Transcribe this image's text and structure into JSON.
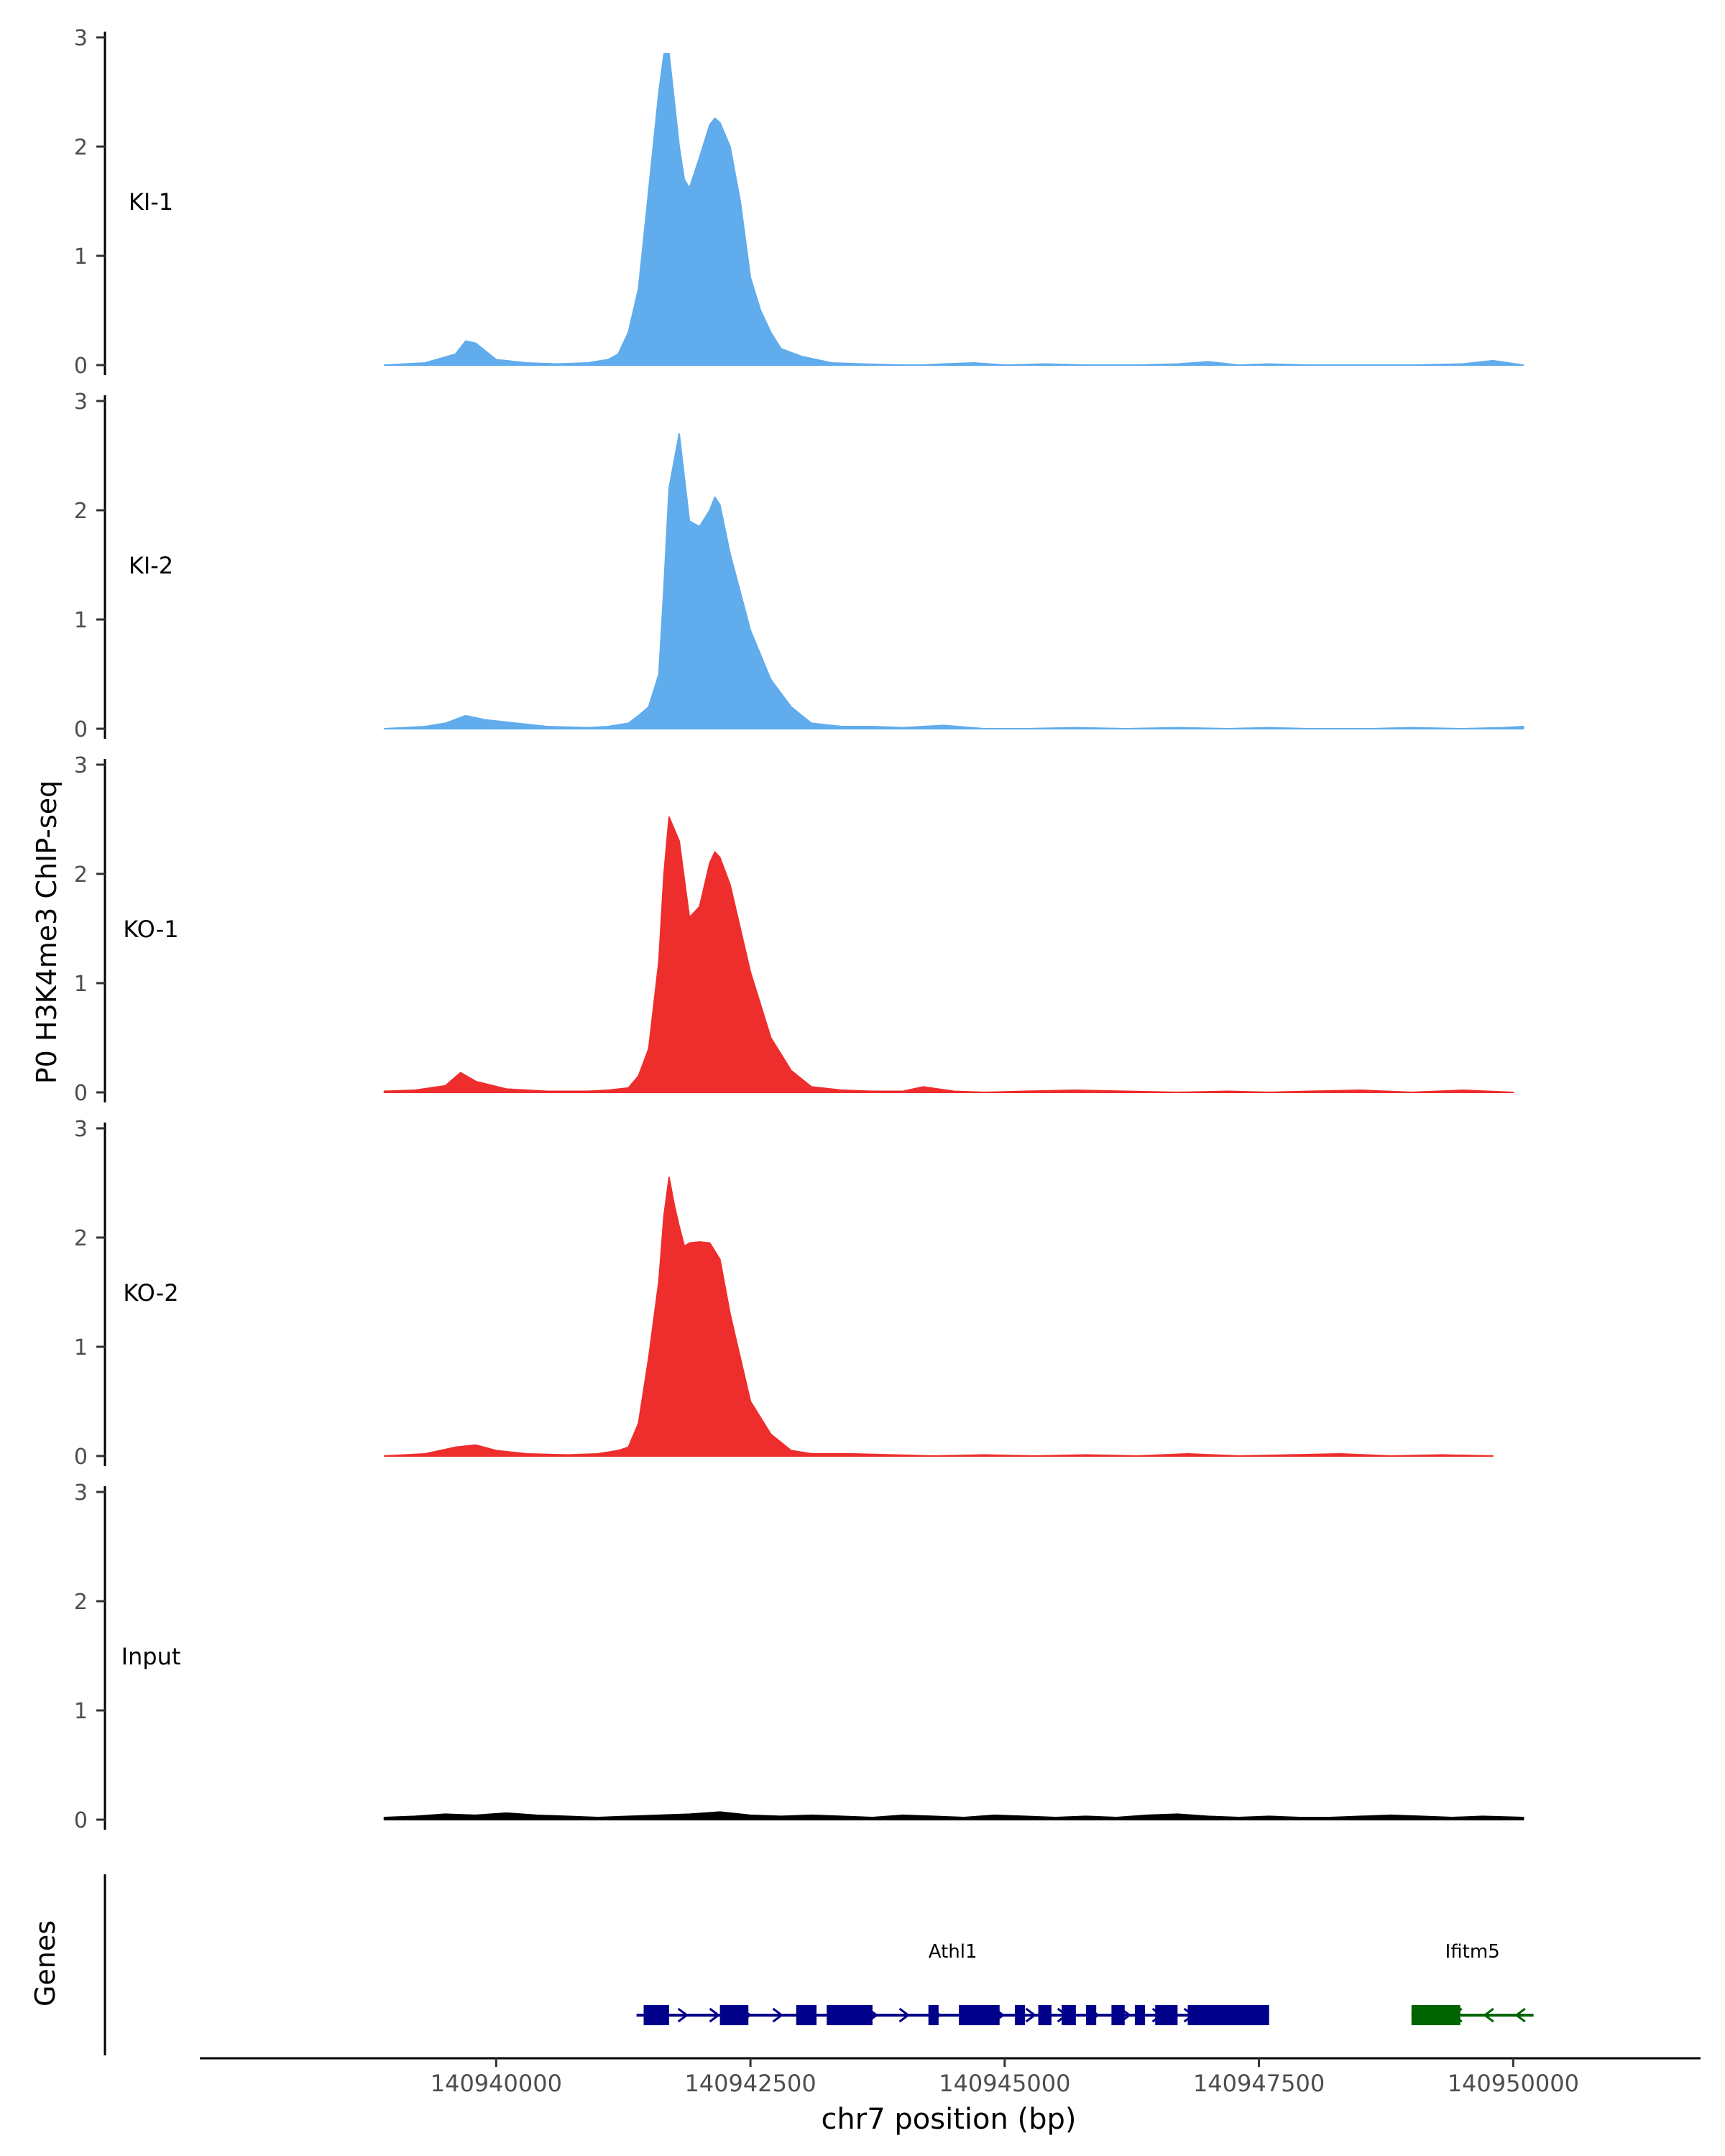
{
  "chart_data": {
    "type": "area",
    "title": "",
    "ylabel": "P0 H3K4me3 ChIP-seq",
    "xlabel": "chr7 position (bp)",
    "xlim": [
      140937100,
      140951800
    ],
    "ylim": [
      0,
      3
    ],
    "y_ticks": [
      "0",
      "1",
      "2",
      "3"
    ],
    "x_ticks": [
      {
        "value": 140940000,
        "label": "140940000"
      },
      {
        "value": 140942500,
        "label": "140942500"
      },
      {
        "value": 140945000,
        "label": "140945000"
      },
      {
        "value": 140947500,
        "label": "140947500"
      },
      {
        "value": 140950000,
        "label": "140950000"
      }
    ],
    "tracks": [
      {
        "name": "KI-1",
        "color": "#60ACEC",
        "x": [
          140938900,
          140939300,
          140939600,
          140939700,
          140939800,
          140940000,
          140940300,
          140940600,
          140940900,
          140941100,
          140941200,
          140941300,
          140941400,
          140941500,
          140941600,
          140941650,
          140941700,
          140941800,
          140941850,
          140941900,
          140942000,
          140942100,
          140942150,
          140942200,
          140942300,
          140942400,
          140942500,
          140942600,
          140942700,
          140942800,
          140943000,
          140943300,
          140943600,
          140944000,
          140944200,
          140944400,
          140944700,
          140945000,
          140945400,
          140945800,
          140946300,
          140946700,
          140947000,
          140947300,
          140947600,
          140948000,
          140948500,
          140949000,
          140949500,
          140949800,
          140950100
        ],
        "values": [
          0.0,
          0.02,
          0.1,
          0.22,
          0.2,
          0.05,
          0.02,
          0.01,
          0.02,
          0.05,
          0.1,
          0.3,
          0.7,
          1.6,
          2.5,
          2.85,
          2.85,
          2.0,
          1.7,
          1.62,
          1.9,
          2.2,
          2.26,
          2.22,
          2.0,
          1.5,
          0.8,
          0.5,
          0.3,
          0.15,
          0.08,
          0.02,
          0.01,
          0.0,
          0.0,
          0.01,
          0.02,
          0.0,
          0.01,
          0.0,
          0.0,
          0.01,
          0.03,
          0.0,
          0.01,
          0.0,
          0.0,
          0.0,
          0.01,
          0.04,
          0.0
        ]
      },
      {
        "name": "KI-2",
        "color": "#60ACEC",
        "x": [
          140938900,
          140939300,
          140939500,
          140939700,
          140939900,
          140940200,
          140940500,
          140940900,
          140941100,
          140941300,
          140941400,
          140941500,
          140941600,
          140941650,
          140941700,
          140941800,
          140941900,
          140942000,
          140942100,
          140942150,
          140942200,
          140942300,
          140942500,
          140942700,
          140942900,
          140943100,
          140943400,
          140943700,
          140944000,
          140944400,
          140944800,
          140945200,
          140945700,
          140946200,
          140946700,
          140947200,
          140947600,
          140948000,
          140948600,
          140949000,
          140949500,
          140949900,
          140950100
        ],
        "values": [
          0.0,
          0.02,
          0.05,
          0.12,
          0.08,
          0.05,
          0.02,
          0.01,
          0.02,
          0.05,
          0.12,
          0.2,
          0.5,
          1.3,
          2.2,
          2.7,
          1.9,
          1.85,
          2.0,
          2.12,
          2.05,
          1.6,
          0.9,
          0.45,
          0.2,
          0.05,
          0.02,
          0.02,
          0.01,
          0.03,
          0.0,
          0.0,
          0.01,
          0.0,
          0.01,
          0.0,
          0.01,
          0.0,
          0.0,
          0.01,
          0.0,
          0.01,
          0.02
        ]
      },
      {
        "name": "KO-1",
        "color": "#EE2D2D",
        "x": [
          140938900,
          140939200,
          140939500,
          140939650,
          140939800,
          140940100,
          140940500,
          140940900,
          140941100,
          140941300,
          140941400,
          140941500,
          140941600,
          140941650,
          140941700,
          140941800,
          140941900,
          140942000,
          140942100,
          140942150,
          140942200,
          140942300,
          140942500,
          140942700,
          140942900,
          140943100,
          140943400,
          140943700,
          140944000,
          140944200,
          140944500,
          140944800,
          140945200,
          140945700,
          140946200,
          140946700,
          140947200,
          140947600,
          140948000,
          140948500,
          140949000,
          140949500,
          140950000
        ],
        "values": [
          0.01,
          0.02,
          0.06,
          0.18,
          0.1,
          0.03,
          0.01,
          0.01,
          0.02,
          0.04,
          0.15,
          0.4,
          1.2,
          2.0,
          2.52,
          2.3,
          1.6,
          1.7,
          2.1,
          2.2,
          2.15,
          1.9,
          1.1,
          0.5,
          0.2,
          0.05,
          0.02,
          0.01,
          0.01,
          0.05,
          0.01,
          0.0,
          0.01,
          0.02,
          0.01,
          0.0,
          0.01,
          0.0,
          0.01,
          0.02,
          0.0,
          0.02,
          0.0
        ]
      },
      {
        "name": "KO-2",
        "color": "#EE2D2D",
        "x": [
          140938900,
          140939300,
          140939600,
          140939800,
          140940000,
          140940300,
          140940700,
          140941000,
          140941200,
          140941300,
          140941400,
          140941500,
          140941600,
          140941650,
          140941700,
          140941750,
          140941800,
          140941850,
          140941900,
          140942000,
          140942100,
          140942200,
          140942300,
          140942400,
          140942500,
          140942700,
          140942900,
          140943100,
          140943500,
          140943900,
          140944300,
          140944800,
          140945300,
          140945800,
          140946300,
          140946800,
          140947300,
          140947800,
          140948300,
          140948800,
          140949300,
          140949800
        ],
        "values": [
          0.0,
          0.02,
          0.08,
          0.1,
          0.05,
          0.02,
          0.01,
          0.02,
          0.05,
          0.08,
          0.3,
          0.9,
          1.6,
          2.2,
          2.55,
          2.3,
          2.1,
          1.92,
          1.95,
          1.96,
          1.95,
          1.8,
          1.3,
          0.9,
          0.5,
          0.2,
          0.05,
          0.02,
          0.02,
          0.01,
          0.0,
          0.01,
          0.0,
          0.01,
          0.0,
          0.02,
          0.0,
          0.01,
          0.02,
          0.0,
          0.01,
          0.0
        ]
      },
      {
        "name": "Input",
        "color": "#000000",
        "x": [
          140938900,
          140939200,
          140939500,
          140939800,
          140940100,
          140940400,
          140940700,
          140941000,
          140941300,
          140941600,
          140941900,
          140942200,
          140942500,
          140942800,
          140943100,
          140943400,
          140943700,
          140944000,
          140944300,
          140944600,
          140944900,
          140945200,
          140945500,
          140945800,
          140946100,
          140946400,
          140946700,
          140947000,
          140947300,
          140947600,
          140947900,
          140948200,
          140948500,
          140948800,
          140949100,
          140949400,
          140949700,
          140950100
        ],
        "values": [
          0.02,
          0.03,
          0.05,
          0.04,
          0.06,
          0.04,
          0.03,
          0.02,
          0.03,
          0.04,
          0.05,
          0.07,
          0.04,
          0.03,
          0.04,
          0.03,
          0.02,
          0.04,
          0.03,
          0.02,
          0.04,
          0.03,
          0.02,
          0.03,
          0.02,
          0.04,
          0.05,
          0.03,
          0.02,
          0.03,
          0.02,
          0.02,
          0.03,
          0.04,
          0.03,
          0.02,
          0.03,
          0.02
        ]
      }
    ],
    "genes_label": "Genes",
    "genes": [
      {
        "name": "Athl1",
        "color": "#00008B",
        "start": 140941380,
        "end": 140947600,
        "strand": "+",
        "exons": [
          [
            140941450,
            140941700
          ],
          [
            140942200,
            140942480
          ],
          [
            140942950,
            140943150
          ],
          [
            140943250,
            140943700
          ],
          [
            140944250,
            140944350
          ],
          [
            140944550,
            140944950
          ],
          [
            140945100,
            140945200
          ],
          [
            140945330,
            140945460
          ],
          [
            140945560,
            140945700
          ],
          [
            140945800,
            140945900
          ],
          [
            140946050,
            140946180
          ],
          [
            140946280,
            140946380
          ],
          [
            140946480,
            140946700
          ],
          [
            140946800,
            140947600
          ]
        ]
      },
      {
        "name": "Ifitm5",
        "color": "#006400",
        "start": 140949000,
        "end": 140950200,
        "strand": "-",
        "exons": [
          [
            140949000,
            140949480
          ]
        ]
      }
    ]
  }
}
